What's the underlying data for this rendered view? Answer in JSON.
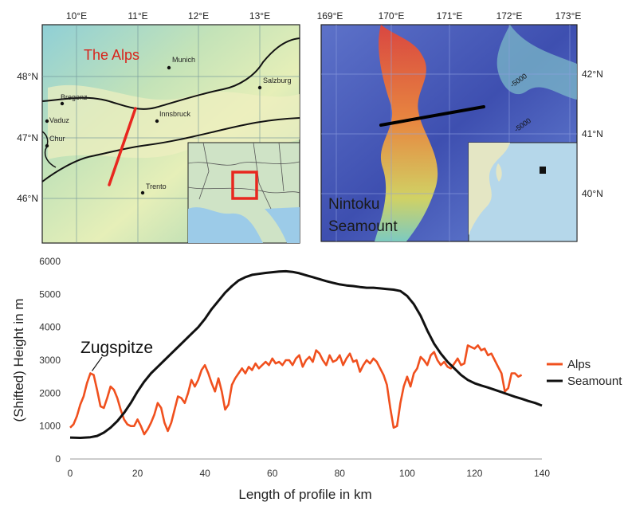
{
  "maps": {
    "alps": {
      "title": "The Alps",
      "lon_ticks": [
        "10°E",
        "11°E",
        "12°E",
        "13°E"
      ],
      "lat_ticks": [
        "48°N",
        "47°N",
        "46°N"
      ],
      "cities": [
        "Munich",
        "Salzburg",
        "Bregenz",
        "Vaduz",
        "Innsbruck",
        "Chur",
        "Trento"
      ],
      "profile_color": "#e8271f"
    },
    "seamount": {
      "title_line1": "Nintoku",
      "title_line2": "Seamount",
      "lon_ticks": [
        "169°E",
        "170°E",
        "171°E",
        "172°E",
        "173°E"
      ],
      "lat_ticks": [
        "42°N",
        "41°N",
        "40°N"
      ],
      "contours": [
        "-5000",
        "-5000"
      ],
      "profile_color": "#000000"
    }
  },
  "chart_data": {
    "type": "line",
    "title": "",
    "xlabel": "Length of profile in km",
    "ylabel": "(Shifted) Height in m",
    "xlim": [
      0,
      140
    ],
    "ylim": [
      0,
      6000
    ],
    "x_ticks": [
      "0",
      "20",
      "40",
      "60",
      "80",
      "100",
      "120",
      "140"
    ],
    "y_ticks": [
      "0",
      "1000",
      "2000",
      "3000",
      "4000",
      "5000",
      "6000"
    ],
    "grid": false,
    "legend_position": "right",
    "annotation": "Zugspitze",
    "annotation_point": [
      6.5,
      2600
    ],
    "series": [
      {
        "name": "Alps",
        "color": "#f0501e",
        "x": [
          0,
          1,
          2,
          3,
          4,
          5,
          6,
          7,
          8,
          9,
          10,
          11,
          12,
          13,
          14,
          15,
          16,
          17,
          18,
          19,
          20,
          21,
          22,
          23,
          24,
          25,
          26,
          27,
          28,
          29,
          30,
          31,
          32,
          33,
          34,
          35,
          36,
          37,
          38,
          39,
          40,
          41,
          42,
          43,
          44,
          45,
          46,
          47,
          48,
          49,
          50,
          51,
          52,
          53,
          54,
          55,
          56,
          57,
          58,
          59,
          60,
          61,
          62,
          63,
          64,
          65,
          66,
          67,
          68,
          69,
          70,
          71,
          72,
          73,
          74,
          75,
          76,
          77,
          78,
          79,
          80,
          81,
          82,
          83,
          84,
          85,
          86,
          87,
          88,
          89,
          90,
          91,
          92,
          93,
          94,
          95,
          96,
          97,
          98,
          99,
          100,
          101,
          102,
          103,
          104,
          105,
          106,
          107,
          108,
          109,
          110,
          111,
          112,
          113,
          114,
          115,
          116,
          117,
          118,
          119,
          120,
          121,
          122,
          123,
          124,
          125,
          126,
          127,
          128,
          129,
          130,
          131,
          132,
          133,
          134
        ],
        "y": [
          950,
          1050,
          1300,
          1650,
          1900,
          2300,
          2600,
          2550,
          2100,
          1600,
          1550,
          1850,
          2200,
          2100,
          1850,
          1500,
          1200,
          1050,
          1000,
          1000,
          1200,
          1000,
          750,
          900,
          1100,
          1350,
          1700,
          1550,
          1100,
          850,
          1100,
          1500,
          1900,
          1850,
          1700,
          2000,
          2400,
          2200,
          2400,
          2700,
          2850,
          2600,
          2300,
          2050,
          2450,
          2050,
          1500,
          1650,
          2250,
          2450,
          2600,
          2750,
          2600,
          2800,
          2700,
          2900,
          2750,
          2850,
          2950,
          2850,
          3050,
          2900,
          2950,
          2850,
          3000,
          3000,
          2850,
          3050,
          3150,
          2800,
          3000,
          3100,
          2950,
          3300,
          3200,
          3000,
          2850,
          3150,
          2950,
          3000,
          3150,
          2850,
          3050,
          3200,
          2950,
          3000,
          2650,
          2850,
          3000,
          2900,
          3050,
          2950,
          2750,
          2550,
          2250,
          1550,
          950,
          1000,
          1700,
          2200,
          2500,
          2200,
          2600,
          2750,
          3100,
          3000,
          2850,
          3150,
          3250,
          3000,
          2850,
          2950,
          2800,
          2750,
          2900,
          3050,
          2850,
          2900,
          3450,
          3400,
          3350,
          3450,
          3300,
          3350,
          3150,
          3200,
          3000,
          2800,
          2600,
          2050,
          2150,
          2600,
          2600,
          2500,
          2550
        ]
      },
      {
        "name": "Seamount",
        "color": "#111111",
        "x": [
          0,
          3,
          6,
          8,
          10,
          12,
          14,
          16,
          18,
          20,
          22,
          24,
          26,
          28,
          30,
          32,
          34,
          36,
          38,
          40,
          42,
          44,
          46,
          48,
          50,
          52,
          54,
          56,
          58,
          60,
          62,
          64,
          66,
          68,
          70,
          72,
          74,
          76,
          78,
          80,
          82,
          84,
          86,
          88,
          90,
          92,
          94,
          96,
          98,
          100,
          102,
          104,
          106,
          108,
          110,
          112,
          114,
          116,
          118,
          120,
          122,
          124,
          126,
          128,
          130,
          132,
          134,
          136,
          138,
          140
        ],
        "y": [
          650,
          640,
          660,
          700,
          800,
          950,
          1150,
          1400,
          1700,
          2050,
          2350,
          2600,
          2800,
          3000,
          3200,
          3400,
          3600,
          3800,
          4000,
          4250,
          4550,
          4800,
          5050,
          5250,
          5420,
          5520,
          5590,
          5620,
          5650,
          5670,
          5690,
          5700,
          5680,
          5640,
          5580,
          5520,
          5460,
          5400,
          5350,
          5300,
          5270,
          5250,
          5220,
          5200,
          5200,
          5180,
          5160,
          5140,
          5100,
          4950,
          4700,
          4350,
          3900,
          3500,
          3200,
          2950,
          2750,
          2550,
          2400,
          2300,
          2230,
          2170,
          2100,
          2030,
          1960,
          1890,
          1830,
          1760,
          1700,
          1620
        ]
      }
    ]
  }
}
